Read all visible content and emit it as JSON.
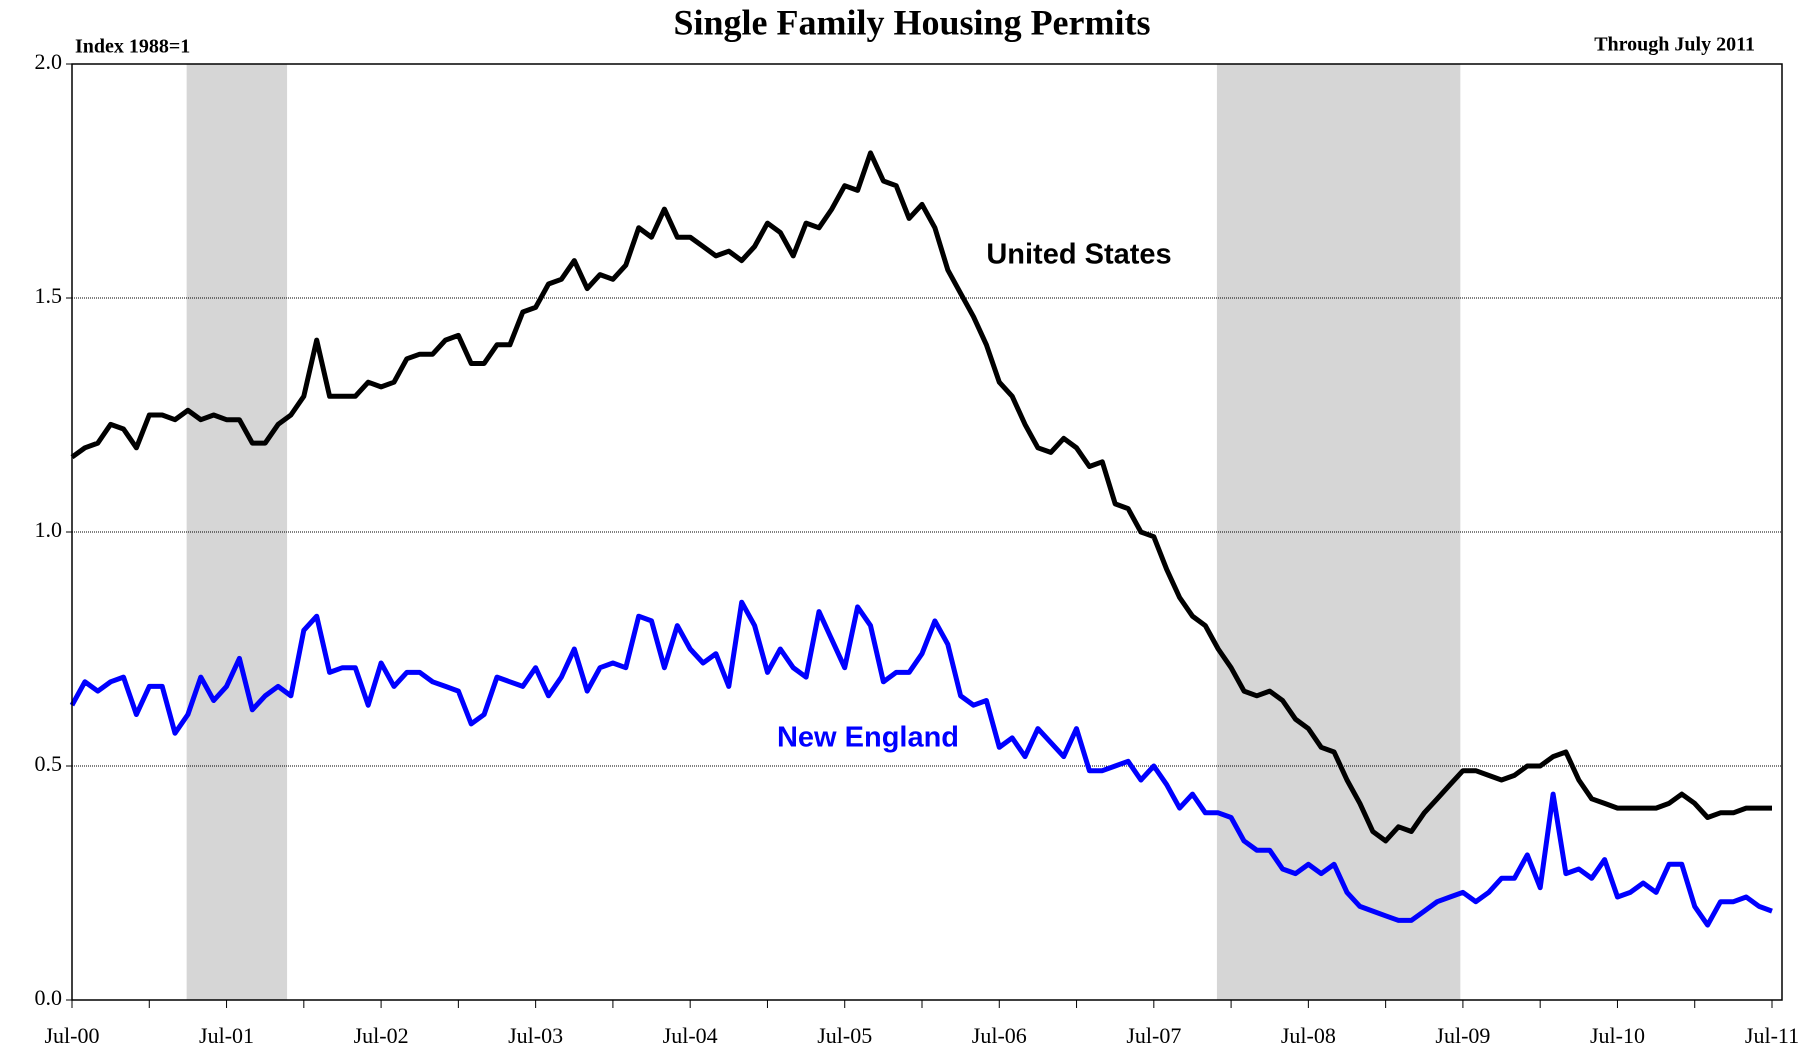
{
  "chart_data": {
    "type": "line",
    "title": "Single Family Housing Permits",
    "subtitle": "Index 1988=1",
    "note": "Through July 2011",
    "categories": [
      "Jul-00",
      null,
      null,
      null,
      null,
      null,
      null,
      null,
      null,
      null,
      null,
      null,
      "Jul-01",
      null,
      null,
      null,
      null,
      null,
      null,
      null,
      null,
      null,
      null,
      null,
      "Jul-02",
      null,
      null,
      null,
      null,
      null,
      null,
      null,
      null,
      null,
      null,
      null,
      "Jul-03",
      null,
      null,
      null,
      null,
      null,
      null,
      null,
      null,
      null,
      null,
      null,
      "Jul-04",
      null,
      null,
      null,
      null,
      null,
      null,
      null,
      null,
      null,
      null,
      null,
      "Jul-05",
      null,
      null,
      null,
      null,
      null,
      null,
      null,
      null,
      null,
      null,
      null,
      "Jul-06",
      null,
      null,
      null,
      null,
      null,
      null,
      null,
      null,
      null,
      null,
      null,
      "Jul-07",
      null,
      null,
      null,
      null,
      null,
      null,
      null,
      null,
      null,
      null,
      null,
      "Jul-08",
      null,
      null,
      null,
      null,
      null,
      null,
      null,
      null,
      null,
      null,
      null,
      "Jul-09",
      null,
      null,
      null,
      null,
      null,
      null,
      null,
      null,
      null,
      null,
      null,
      "Jul-10",
      null,
      null,
      null,
      null,
      null,
      null,
      null,
      null,
      null,
      null,
      null,
      "Jul-11"
    ],
    "series": [
      {
        "name": "United States",
        "color": "#000000",
        "values": [
          1.16,
          1.18,
          1.19,
          1.23,
          1.22,
          1.18,
          1.25,
          1.25,
          1.24,
          1.26,
          1.24,
          1.25,
          1.24,
          1.24,
          1.19,
          1.19,
          1.23,
          1.25,
          1.29,
          1.41,
          1.29,
          1.29,
          1.29,
          1.32,
          1.31,
          1.32,
          1.37,
          1.38,
          1.38,
          1.41,
          1.42,
          1.36,
          1.36,
          1.4,
          1.4,
          1.47,
          1.48,
          1.53,
          1.54,
          1.58,
          1.52,
          1.55,
          1.54,
          1.57,
          1.65,
          1.63,
          1.69,
          1.63,
          1.63,
          1.61,
          1.59,
          1.6,
          1.58,
          1.61,
          1.66,
          1.64,
          1.59,
          1.66,
          1.65,
          1.69,
          1.74,
          1.73,
          1.81,
          1.75,
          1.74,
          1.67,
          1.7,
          1.65,
          1.56,
          1.51,
          1.46,
          1.4,
          1.32,
          1.29,
          1.23,
          1.18,
          1.17,
          1.2,
          1.18,
          1.14,
          1.15,
          1.06,
          1.05,
          1.0,
          0.99,
          0.92,
          0.86,
          0.82,
          0.8,
          0.75,
          0.71,
          0.66,
          0.65,
          0.66,
          0.64,
          0.6,
          0.58,
          0.54,
          0.53,
          0.47,
          0.42,
          0.36,
          0.34,
          0.37,
          0.36,
          0.4,
          0.43,
          0.46,
          0.49,
          0.49,
          0.48,
          0.47,
          0.48,
          0.5,
          0.5,
          0.52,
          0.53,
          0.47,
          0.43,
          0.42,
          0.41,
          0.41,
          0.41,
          0.41,
          0.42,
          0.44,
          0.42,
          0.39,
          0.4,
          0.4,
          0.41,
          0.41,
          0.41
        ]
      },
      {
        "name": "New England",
        "color": "#0000ff",
        "values": [
          0.63,
          0.68,
          0.66,
          0.68,
          0.69,
          0.61,
          0.67,
          0.67,
          0.57,
          0.61,
          0.69,
          0.64,
          0.67,
          0.73,
          0.62,
          0.65,
          0.67,
          0.65,
          0.79,
          0.82,
          0.7,
          0.71,
          0.71,
          0.63,
          0.72,
          0.67,
          0.7,
          0.7,
          0.68,
          0.67,
          0.66,
          0.59,
          0.61,
          0.69,
          0.68,
          0.67,
          0.71,
          0.65,
          0.69,
          0.75,
          0.66,
          0.71,
          0.72,
          0.71,
          0.82,
          0.81,
          0.71,
          0.8,
          0.75,
          0.72,
          0.74,
          0.67,
          0.85,
          0.8,
          0.7,
          0.75,
          0.71,
          0.69,
          0.83,
          0.77,
          0.71,
          0.84,
          0.8,
          0.68,
          0.7,
          0.7,
          0.74,
          0.81,
          0.76,
          0.65,
          0.63,
          0.64,
          0.54,
          0.56,
          0.52,
          0.58,
          0.55,
          0.52,
          0.58,
          0.49,
          0.49,
          0.5,
          0.51,
          0.47,
          0.5,
          0.46,
          0.41,
          0.44,
          0.4,
          0.4,
          0.39,
          0.34,
          0.32,
          0.32,
          0.28,
          0.27,
          0.29,
          0.27,
          0.29,
          0.23,
          0.2,
          0.19,
          0.18,
          0.17,
          0.17,
          0.19,
          0.21,
          0.22,
          0.23,
          0.21,
          0.23,
          0.26,
          0.26,
          0.31,
          0.24,
          0.44,
          0.27,
          0.28,
          0.26,
          0.3,
          0.22,
          0.23,
          0.25,
          0.23,
          0.29,
          0.29,
          0.2,
          0.16,
          0.21,
          0.21,
          0.22,
          0.2,
          0.19
        ]
      }
    ],
    "shaded_periods": [
      [
        8.9,
        16.7
      ],
      [
        88.9,
        107.8
      ]
    ],
    "ylim": [
      0,
      2
    ],
    "yticks": [
      {
        "value": 0,
        "label": "0.0"
      },
      {
        "value": 0.5,
        "label": "0.5"
      },
      {
        "value": 1,
        "label": "1.0"
      },
      {
        "value": 1.5,
        "label": "1.5"
      },
      {
        "value": 2,
        "label": "2.0"
      }
    ],
    "grid": true
  }
}
